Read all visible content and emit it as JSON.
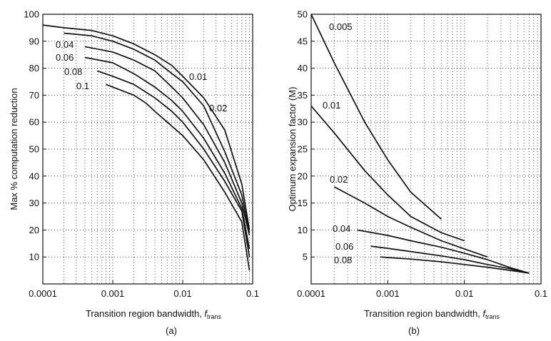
{
  "chart_data": [
    {
      "type": "line",
      "caption": "(a)",
      "xlabel": "Transition region bandwidth,",
      "xlabel_var": "f",
      "xlabel_sub": "trans",
      "ylabel": "Max % computation reduction",
      "x_scale": "log",
      "xlim": [
        0.0001,
        0.1
      ],
      "ylim": [
        0,
        100
      ],
      "x_ticks": [
        0.0001,
        0.001,
        0.01,
        0.1
      ],
      "x_tick_labels": [
        "0.0001",
        "0.001",
        "0.01",
        "0.1"
      ],
      "y_ticks": [
        10,
        20,
        30,
        40,
        50,
        60,
        70,
        80,
        90,
        100
      ],
      "y_tick_labels": [
        "10",
        "20",
        "30",
        "40",
        "50",
        "60",
        "70",
        "80",
        "90",
        "100"
      ],
      "grid": true,
      "series": [
        {
          "name": "0.01",
          "x": [
            0.0001,
            0.0002,
            0.0005,
            0.001,
            0.002,
            0.004,
            0.007,
            0.01,
            0.02,
            0.04,
            0.07,
            0.09
          ],
          "y": [
            96,
            95,
            94,
            92,
            89,
            85,
            81,
            77,
            69,
            57,
            37,
            20
          ]
        },
        {
          "name": "0.02",
          "x": [
            0.0002,
            0.0005,
            0.001,
            0.002,
            0.004,
            0.007,
            0.01,
            0.02,
            0.04,
            0.07,
            0.09
          ],
          "y": [
            93,
            92,
            90,
            87,
            83,
            78,
            75,
            66,
            49,
            33,
            19
          ]
        },
        {
          "name": "0.04",
          "x": [
            0.0004,
            0.001,
            0.002,
            0.004,
            0.007,
            0.01,
            0.02,
            0.04,
            0.07,
            0.09
          ],
          "y": [
            88,
            86,
            83,
            79,
            73,
            69,
            59,
            45,
            30,
            18
          ]
        },
        {
          "name": "0.06",
          "x": [
            0.0004,
            0.001,
            0.002,
            0.004,
            0.007,
            0.01,
            0.02,
            0.04,
            0.07,
            0.09
          ],
          "y": [
            84,
            82,
            78,
            73,
            68,
            64,
            54,
            41,
            28,
            13
          ]
        },
        {
          "name": "0.08",
          "x": [
            0.0006,
            0.001,
            0.002,
            0.004,
            0.007,
            0.01,
            0.02,
            0.04,
            0.07,
            0.09
          ],
          "y": [
            79,
            77,
            74,
            69,
            64,
            60,
            50,
            38,
            27,
            10
          ]
        },
        {
          "name": "0.1",
          "x": [
            0.0008,
            0.001,
            0.002,
            0.003,
            0.004,
            0.006,
            0.01,
            0.02,
            0.04,
            0.07,
            0.09
          ],
          "y": [
            74,
            73,
            70,
            67,
            64,
            60,
            55,
            46,
            34,
            23,
            5
          ]
        }
      ]
    },
    {
      "type": "line",
      "caption": "(b)",
      "xlabel": "Transition region bandwidth,",
      "xlabel_var": "f",
      "xlabel_sub": "trans",
      "ylabel": "Optimum expansion factor (M)",
      "x_scale": "log",
      "xlim": [
        0.0001,
        0.1
      ],
      "ylim": [
        0,
        50
      ],
      "x_ticks": [
        0.0001,
        0.001,
        0.01,
        0.1
      ],
      "x_tick_labels": [
        "0.0001",
        "0.001",
        "0.01",
        "0.1"
      ],
      "y_ticks": [
        5,
        10,
        15,
        20,
        25,
        30,
        35,
        40,
        45,
        50
      ],
      "y_tick_labels": [
        "5",
        "10",
        "15",
        "20",
        "25",
        "30",
        "35",
        "40",
        "45",
        "50"
      ],
      "grid": true,
      "series": [
        {
          "name": "0.005",
          "x": [
            0.0001,
            0.0002,
            0.0005,
            0.001,
            0.002,
            0.005
          ],
          "y": [
            50,
            41,
            30,
            23,
            17,
            12
          ]
        },
        {
          "name": "0.01",
          "x": [
            0.0001,
            0.0002,
            0.0005,
            0.001,
            0.002,
            0.005,
            0.01
          ],
          "y": [
            33,
            28,
            21,
            16.5,
            12.5,
            9.5,
            8
          ]
        },
        {
          "name": "0.02",
          "x": [
            0.0002,
            0.0005,
            0.001,
            0.002,
            0.005,
            0.01,
            0.02
          ],
          "y": [
            18,
            15,
            12.5,
            10.5,
            8,
            6.5,
            5
          ]
        },
        {
          "name": "0.04",
          "x": [
            0.0004,
            0.001,
            0.002,
            0.005,
            0.01,
            0.02,
            0.04,
            0.07
          ],
          "y": [
            10,
            9,
            8,
            6.8,
            5.7,
            4.5,
            3,
            2
          ]
        },
        {
          "name": "0.06",
          "x": [
            0.0006,
            0.001,
            0.002,
            0.005,
            0.01,
            0.02,
            0.04,
            0.07
          ],
          "y": [
            7,
            6.6,
            6,
            5.2,
            4.5,
            3.6,
            2.8,
            2
          ]
        },
        {
          "name": "0.08",
          "x": [
            0.0008,
            0.001,
            0.002,
            0.005,
            0.01,
            0.02,
            0.04,
            0.07
          ],
          "y": [
            5,
            4.9,
            4.6,
            4.1,
            3.6,
            3.1,
            2.5,
            2
          ]
        }
      ]
    }
  ]
}
